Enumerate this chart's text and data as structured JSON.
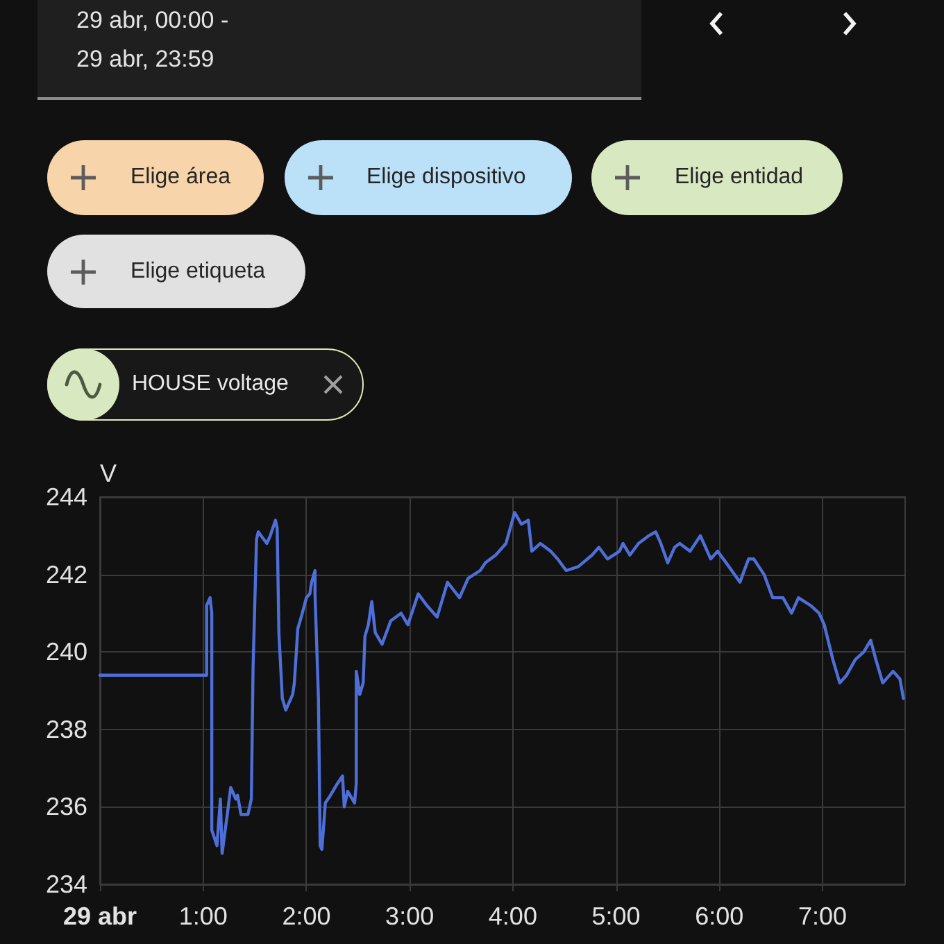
{
  "chart_data": {
    "type": "line",
    "ylabel": "V",
    "annotations": [
      "29 abr, 00:00 -",
      "29 abr, 23:59",
      "Elige área",
      "Elige dispositivo",
      "Elige entidad",
      "Elige etiqueta",
      "HOUSE voltage"
    ],
    "x": [
      "--04-29T00:00",
      "--04-29T01:02",
      "--04-29T01:02",
      "--04-29T01:04",
      "--04-29T01:05",
      "--04-29T01:05",
      "--04-29T01:08",
      "--04-29T01:10",
      "--04-29T01:11",
      "--04-29T01:14",
      "--04-29T01:16",
      "--04-29T01:19",
      "--04-29T01:20",
      "--04-29T01:22",
      "--04-29T01:26",
      "--04-29T01:28",
      "--04-29T01:29",
      "--04-29T01:31",
      "--04-29T01:32",
      "--04-29T01:37",
      "--04-29T01:39",
      "--04-29T01:42",
      "--04-29T01:43",
      "--04-29T01:44",
      "--04-29T01:46",
      "--04-29T01:48",
      "--04-29T01:52",
      "--04-29T01:53",
      "--04-29T01:55",
      "--04-29T01:57",
      "--04-29T02:00",
      "--04-29T02:02",
      "--04-29T02:03",
      "--04-29T02:05",
      "--04-29T02:05",
      "--04-29T02:07",
      "--04-29T02:08",
      "--04-29T02:09",
      "--04-29T02:11",
      "--04-29T02:14",
      "--04-29T02:18",
      "--04-29T02:21",
      "--04-29T02:22",
      "--04-29T02:24",
      "--04-29T02:28",
      "--04-29T02:29",
      "--04-29T02:29",
      "--04-29T02:31",
      "--04-29T02:33",
      "--04-29T02:34",
      "--04-29T02:36",
      "--04-29T02:38",
      "--04-29T02:40",
      "--04-29T02:44",
      "--04-29T02:49",
      "--04-29T02:55",
      "--04-29T02:59",
      "--04-29T03:05",
      "--04-29T03:10",
      "--04-29T03:16",
      "--04-29T03:22",
      "--04-29T03:29",
      "--04-29T03:34",
      "--04-29T03:41",
      "--04-29T03:44",
      "--04-29T03:50",
      "--04-29T03:56",
      "--04-29T04:01",
      "--04-29T04:05",
      "--04-29T04:09",
      "--04-29T04:11",
      "--04-29T04:16",
      "--04-29T04:22",
      "--04-29T04:26",
      "--04-29T04:31",
      "--04-29T04:38",
      "--04-29T04:46",
      "--04-29T04:50",
      "--04-29T04:55",
      "--04-29T05:02",
      "--04-29T05:04",
      "--04-29T05:08",
      "--04-29T05:13",
      "--04-29T05:19",
      "--04-29T05:23",
      "--04-29T05:26",
      "--04-29T05:30",
      "--04-29T05:34",
      "--04-29T05:37",
      "--04-29T05:43",
      "--04-29T05:49",
      "--04-29T05:55",
      "--04-29T05:59",
      "--04-29T06:04",
      "--04-29T06:12",
      "--04-29T06:17",
      "--04-29T06:20",
      "--04-29T06:26",
      "--04-29T06:31",
      "--04-29T06:37",
      "--04-29T06:42",
      "--04-29T06:46",
      "--04-29T06:53",
      "--04-29T06:58",
      "--04-29T07:01",
      "--04-29T07:06",
      "--04-29T07:10",
      "--04-29T07:14",
      "--04-29T07:19",
      "--04-29T07:24",
      "--04-29T07:28",
      "--04-29T07:31",
      "--04-29T07:35",
      "--04-29T07:41",
      "--04-29T07:45",
      "--04-29T07:47"
    ],
    "series": [
      {
        "color": "#4f6fd8",
        "values": [
          239.4,
          239.4,
          241.2,
          241.4,
          241.0,
          235.4,
          235.0,
          236.2,
          234.8,
          235.8,
          236.5,
          236.2,
          236.3,
          235.8,
          235.8,
          236.2,
          239.6,
          242.9,
          243.1,
          242.8,
          243.0,
          243.4,
          243.2,
          240.5,
          238.8,
          238.5,
          238.9,
          239.2,
          240.6,
          240.9,
          241.4,
          241.5,
          241.8,
          242.1,
          241.5,
          238.8,
          235.0,
          234.9,
          236.1,
          236.3,
          236.6,
          236.8,
          236.0,
          236.4,
          236.1,
          236.6,
          239.5,
          238.9,
          239.2,
          240.4,
          240.7,
          241.3,
          240.5,
          240.2,
          240.8,
          241.0,
          240.7,
          241.5,
          241.2,
          240.9,
          241.8,
          241.4,
          241.9,
          242.1,
          242.3,
          242.5,
          242.8,
          243.6,
          243.3,
          243.4,
          242.6,
          242.8,
          242.6,
          242.4,
          242.1,
          242.2,
          242.5,
          242.7,
          242.4,
          242.6,
          242.8,
          242.5,
          242.8,
          243.0,
          243.1,
          242.8,
          242.3,
          242.7,
          242.8,
          242.6,
          243.0,
          242.4,
          242.6,
          242.3,
          241.8,
          242.4,
          242.4,
          242.0,
          241.4,
          241.4,
          241.0,
          241.4,
          241.2,
          241.0,
          240.7,
          239.8,
          239.2,
          239.4,
          239.8,
          240.0,
          240.3,
          239.8,
          239.2,
          239.5,
          239.3,
          238.8
        ]
      }
    ],
    "xlim": [
      "--04-29T00:00",
      "--04-29T07:48"
    ],
    "xticks": [
      {
        "value": "--04-29T00:00",
        "label": "29 abr"
      },
      {
        "value": "--04-29T01:00",
        "label": "1:00"
      },
      {
        "value": "--04-29T02:00",
        "label": "2:00"
      },
      {
        "value": "--04-29T03:00",
        "label": "3:00"
      },
      {
        "value": "--04-29T04:00",
        "label": "4:00"
      },
      {
        "value": "--04-29T05:00",
        "label": "5:00"
      },
      {
        "value": "--04-29T06:00",
        "label": "6:00"
      },
      {
        "value": "--04-29T07:00",
        "label": "7:00"
      }
    ],
    "ylim": [
      234,
      244
    ],
    "yticks": [
      234,
      236,
      238,
      240,
      242,
      244
    ],
    "grid": true,
    "marker": "none",
    "line_style": "solid"
  }
}
